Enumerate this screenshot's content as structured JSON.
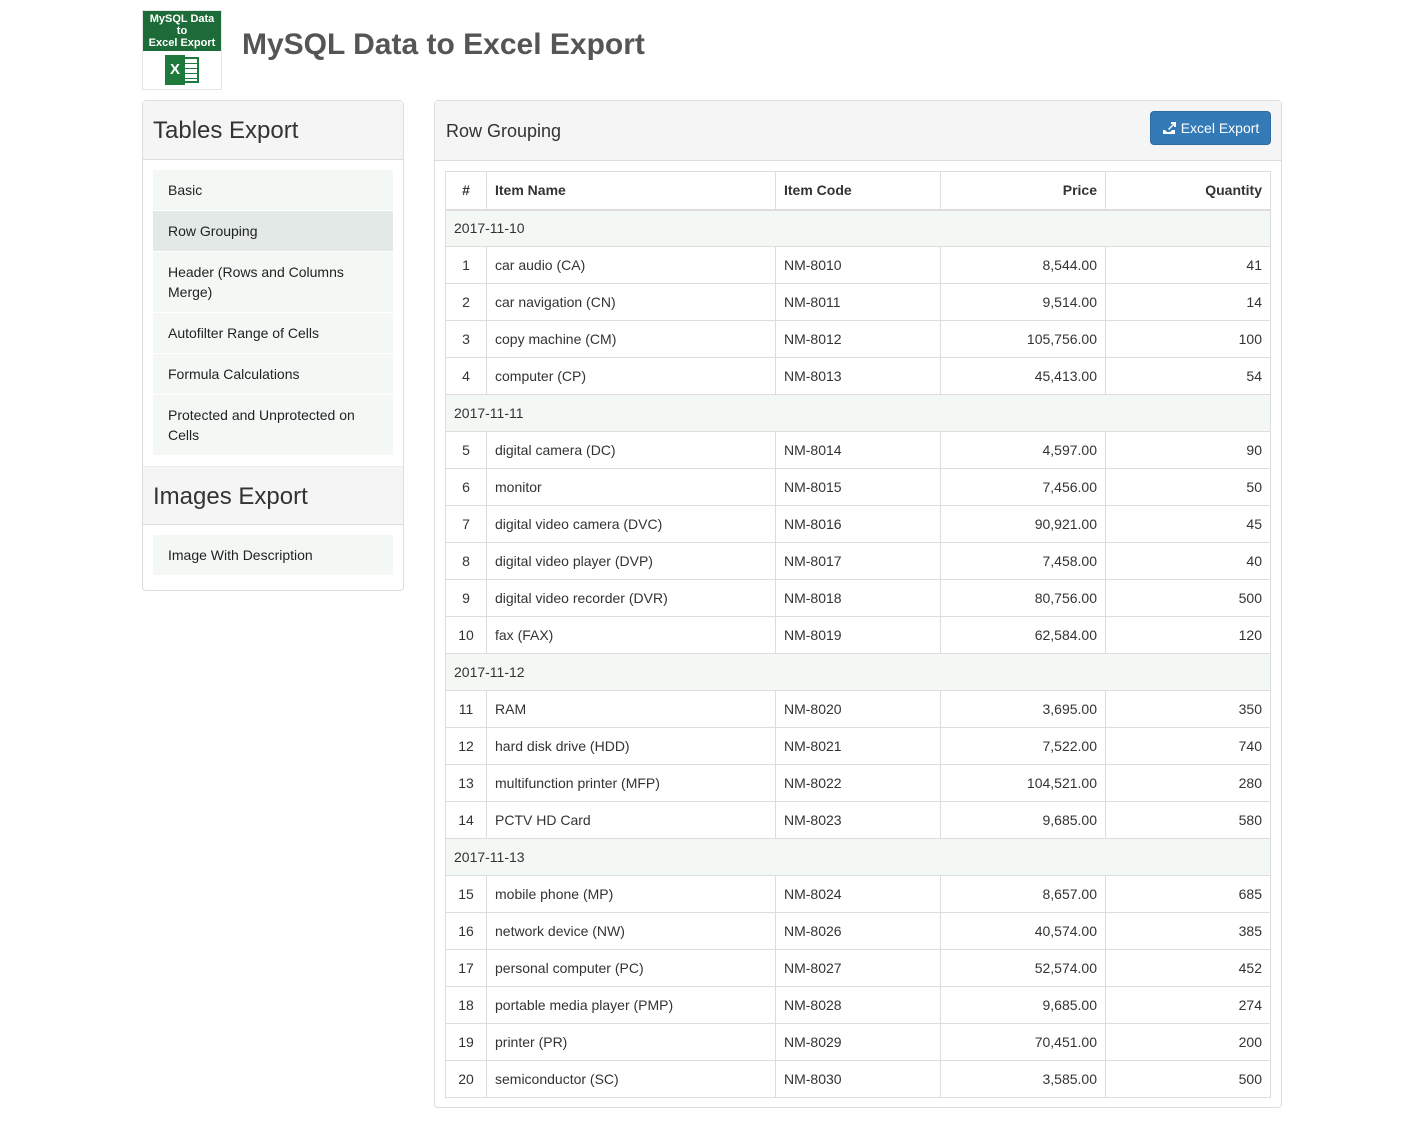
{
  "logo": {
    "text": "MySQL Data to Excel Export",
    "icon": "excel-icon"
  },
  "header": {
    "title": "MySQL Data to Excel Export"
  },
  "sidebar": {
    "sections": [
      {
        "title": "Tables Export",
        "items": [
          {
            "label": "Basic"
          },
          {
            "label": "Row Grouping",
            "active": true
          },
          {
            "label": "Header (Rows and Columns Merge)"
          },
          {
            "label": "Autofilter Range of Cells"
          },
          {
            "label": "Formula Calculations"
          },
          {
            "label": "Protected and Unprotected on Cells"
          }
        ]
      },
      {
        "title": "Images Export",
        "items": [
          {
            "label": "Image With Description"
          }
        ]
      }
    ]
  },
  "main": {
    "title": "Row Grouping",
    "export_button": "Excel Export",
    "colors": {
      "button": "#337ab7",
      "group_row": "#f3f8f5"
    },
    "columns": [
      "#",
      "Item Name",
      "Item Code",
      "Price",
      "Quantity"
    ],
    "groups": [
      {
        "date": "2017-11-10",
        "rows": [
          [
            "1",
            "car audio (CA)",
            "NM-8010",
            "8,544.00",
            "41"
          ],
          [
            "2",
            "car navigation (CN)",
            "NM-8011",
            "9,514.00",
            "14"
          ],
          [
            "3",
            "copy machine (CM)",
            "NM-8012",
            "105,756.00",
            "100"
          ],
          [
            "4",
            "computer (CP)",
            "NM-8013",
            "45,413.00",
            "54"
          ]
        ]
      },
      {
        "date": "2017-11-11",
        "rows": [
          [
            "5",
            "digital camera (DC)",
            "NM-8014",
            "4,597.00",
            "90"
          ],
          [
            "6",
            "monitor",
            "NM-8015",
            "7,456.00",
            "50"
          ],
          [
            "7",
            "digital video camera (DVC)",
            "NM-8016",
            "90,921.00",
            "45"
          ],
          [
            "8",
            "digital video player (DVP)",
            "NM-8017",
            "7,458.00",
            "40"
          ],
          [
            "9",
            "digital video recorder (DVR)",
            "NM-8018",
            "80,756.00",
            "500"
          ],
          [
            "10",
            "fax (FAX)",
            "NM-8019",
            "62,584.00",
            "120"
          ]
        ]
      },
      {
        "date": "2017-11-12",
        "rows": [
          [
            "11",
            "RAM",
            "NM-8020",
            "3,695.00",
            "350"
          ],
          [
            "12",
            "hard disk drive (HDD)",
            "NM-8021",
            "7,522.00",
            "740"
          ],
          [
            "13",
            "multifunction printer (MFP)",
            "NM-8022",
            "104,521.00",
            "280"
          ],
          [
            "14",
            "PCTV HD Card",
            "NM-8023",
            "9,685.00",
            "580"
          ]
        ]
      },
      {
        "date": "2017-11-13",
        "rows": [
          [
            "15",
            "mobile phone (MP)",
            "NM-8024",
            "8,657.00",
            "685"
          ],
          [
            "16",
            "network device (NW)",
            "NM-8026",
            "40,574.00",
            "385"
          ],
          [
            "17",
            "personal computer (PC)",
            "NM-8027",
            "52,574.00",
            "452"
          ],
          [
            "18",
            "portable media player (PMP)",
            "NM-8028",
            "9,685.00",
            "274"
          ],
          [
            "19",
            "printer (PR)",
            "NM-8029",
            "70,451.00",
            "200"
          ],
          [
            "20",
            "semiconductor (SC)",
            "NM-8030",
            "3,585.00",
            "500"
          ]
        ]
      }
    ]
  }
}
